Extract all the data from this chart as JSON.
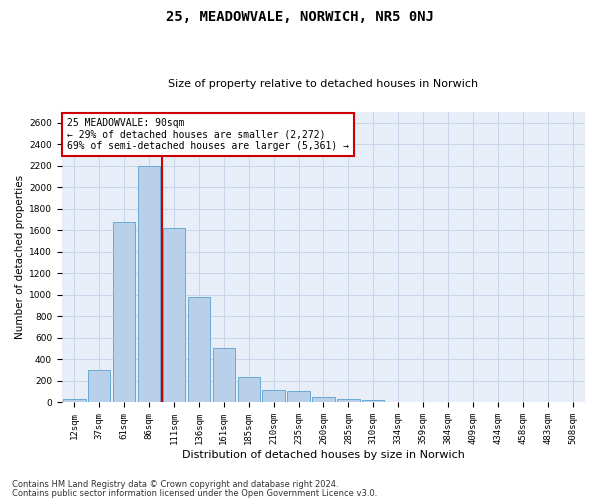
{
  "title": "25, MEADOWVALE, NORWICH, NR5 0NJ",
  "subtitle": "Size of property relative to detached houses in Norwich",
  "xlabel": "Distribution of detached houses by size in Norwich",
  "ylabel": "Number of detached properties",
  "footer_line1": "Contains HM Land Registry data © Crown copyright and database right 2024.",
  "footer_line2": "Contains public sector information licensed under the Open Government Licence v3.0.",
  "annotation_title": "25 MEADOWVALE: 90sqm",
  "annotation_line2": "← 29% of detached houses are smaller (2,272)",
  "annotation_line3": "69% of semi-detached houses are larger (5,361) →",
  "categories": [
    "12sqm",
    "37sqm",
    "61sqm",
    "86sqm",
    "111sqm",
    "136sqm",
    "161sqm",
    "185sqm",
    "210sqm",
    "235sqm",
    "260sqm",
    "285sqm",
    "310sqm",
    "334sqm",
    "359sqm",
    "384sqm",
    "409sqm",
    "434sqm",
    "458sqm",
    "483sqm",
    "508sqm"
  ],
  "values": [
    30,
    300,
    1680,
    2200,
    1620,
    980,
    510,
    240,
    120,
    110,
    50,
    30,
    20,
    0,
    0,
    0,
    0,
    0,
    0,
    0,
    0
  ],
  "bar_color": "#b8d0ea",
  "bar_edge_color": "#6aaad4",
  "red_line_x": 3.5,
  "ylim": [
    0,
    2700
  ],
  "yticks": [
    0,
    200,
    400,
    600,
    800,
    1000,
    1200,
    1400,
    1600,
    1800,
    2000,
    2200,
    2400,
    2600
  ],
  "grid_color": "#c8d4e8",
  "annotation_box_color": "#ffffff",
  "annotation_box_edge": "#cc0000",
  "red_line_color": "#cc0000",
  "background_color": "#e8eef8",
  "title_fontsize": 10,
  "subtitle_fontsize": 8,
  "tick_fontsize": 6.5,
  "ylabel_fontsize": 7.5,
  "xlabel_fontsize": 8,
  "annotation_fontsize": 7,
  "footer_fontsize": 6
}
